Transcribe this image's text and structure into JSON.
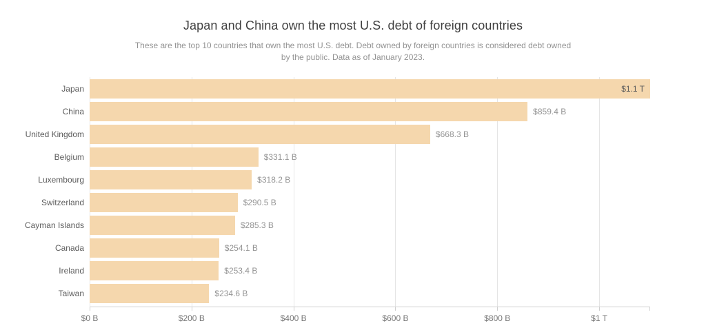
{
  "chart_data": {
    "type": "bar",
    "orientation": "horizontal",
    "title": "Japan and China own the most U.S. debt of foreign countries",
    "subtitle": "These are the top 10 countries that own the most U.S. debt. Debt owned by foreign countries is considered debt owned by the public. Data as of January 2023.",
    "categories": [
      "Japan",
      "China",
      "United Kingdom",
      "Belgium",
      "Luxembourg",
      "Switzerland",
      "Cayman Islands",
      "Canada",
      "Ireland",
      "Taiwan"
    ],
    "values_billions_usd": [
      1100,
      859.4,
      668.3,
      331.1,
      318.2,
      290.5,
      285.3,
      254.1,
      253.4,
      234.6
    ],
    "value_labels": [
      "$1.1 T",
      "$859.4 B",
      "$668.3 B",
      "$331.1 B",
      "$318.2 B",
      "$290.5 B",
      "$285.3 B",
      "$254.1 B",
      "$253.4 B",
      "$234.6 B"
    ],
    "value_label_inside_for": [
      "Japan"
    ],
    "xlabel": "",
    "ylabel": "",
    "xlim": [
      0,
      1100
    ],
    "x_ticks": [
      {
        "value": 0,
        "label": "$0 B"
      },
      {
        "value": 200,
        "label": "$200 B"
      },
      {
        "value": 400,
        "label": "$400 B"
      },
      {
        "value": 600,
        "label": "$600 B"
      },
      {
        "value": 800,
        "label": "$800 B"
      },
      {
        "value": 1000,
        "label": "$1 T"
      }
    ],
    "axis_end_tick": true,
    "grid": true,
    "legend": false,
    "bar_color": "#f5d7ad"
  }
}
